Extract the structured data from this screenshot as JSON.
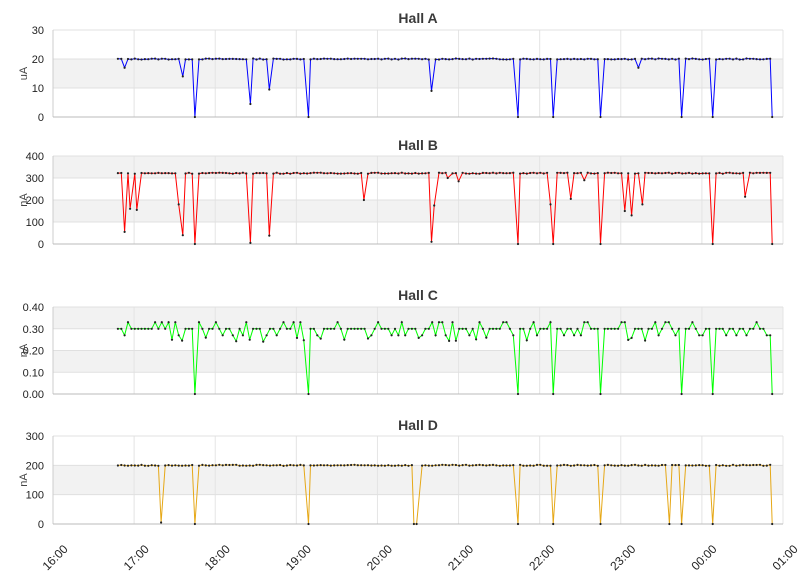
{
  "chart_data": [
    {
      "type": "line",
      "title": "Hall A",
      "ylabel": "uA",
      "ylim": [
        0,
        30
      ],
      "yticks": [
        "0",
        "10",
        "20",
        "30"
      ],
      "color": "#0000ff",
      "xlim": [
        "16:00",
        "01:00"
      ],
      "xticks": [
        "16:00",
        "17:00",
        "18:00",
        "19:00",
        "20:00",
        "21:00",
        "22:00",
        "23:00",
        "00:00",
        "01:00"
      ],
      "grid": true,
      "baseline": 20,
      "x_start": "16:48",
      "x_end": "00:54",
      "dips": [
        {
          "t": "16:53",
          "v": 17
        },
        {
          "t": "17:36",
          "v": 14
        },
        {
          "t": "17:45",
          "v": 0
        },
        {
          "t": "18:26",
          "v": 4.5
        },
        {
          "t": "18:40",
          "v": 9.5
        },
        {
          "t": "19:09",
          "v": 0
        },
        {
          "t": "20:40",
          "v": 9
        },
        {
          "t": "21:44",
          "v": 0
        },
        {
          "t": "22:10",
          "v": 0
        },
        {
          "t": "22:45",
          "v": 0
        },
        {
          "t": "23:13",
          "v": 17
        },
        {
          "t": "23:45",
          "v": 0
        },
        {
          "t": "00:08",
          "v": 0
        },
        {
          "t": "00:52",
          "v": 0
        }
      ]
    },
    {
      "type": "line",
      "title": "Hall B",
      "ylabel": "nA",
      "ylim": [
        0,
        400
      ],
      "yticks": [
        "0",
        "100",
        "200",
        "300",
        "400"
      ],
      "color": "#ff0000",
      "xlim": [
        "16:00",
        "01:00"
      ],
      "grid": true,
      "baseline": 322,
      "x_start": "16:48",
      "x_end": "00:54",
      "dips": [
        {
          "t": "16:53",
          "v": 55
        },
        {
          "t": "16:57",
          "v": 160
        },
        {
          "t": "17:02",
          "v": 155
        },
        {
          "t": "17:33",
          "v": 180
        },
        {
          "t": "17:36",
          "v": 40
        },
        {
          "t": "17:45",
          "v": 0
        },
        {
          "t": "18:26",
          "v": 5
        },
        {
          "t": "18:40",
          "v": 38
        },
        {
          "t": "19:50",
          "v": 200
        },
        {
          "t": "20:40",
          "v": 10
        },
        {
          "t": "20:42",
          "v": 175
        },
        {
          "t": "20:52",
          "v": 300
        },
        {
          "t": "21:00",
          "v": 285
        },
        {
          "t": "21:44",
          "v": 0
        },
        {
          "t": "22:08",
          "v": 180
        },
        {
          "t": "22:10",
          "v": 0
        },
        {
          "t": "22:23",
          "v": 205
        },
        {
          "t": "22:33",
          "v": 290
        },
        {
          "t": "22:45",
          "v": 0
        },
        {
          "t": "23:03",
          "v": 150
        },
        {
          "t": "23:08",
          "v": 130
        },
        {
          "t": "23:16",
          "v": 180
        },
        {
          "t": "00:08",
          "v": 0
        },
        {
          "t": "00:32",
          "v": 215
        },
        {
          "t": "00:52",
          "v": 0
        }
      ]
    },
    {
      "type": "line",
      "title": "Hall C",
      "ylabel": "nA",
      "ylim": [
        0,
        0.4
      ],
      "yticks": [
        "0.00",
        "0.10",
        "0.20",
        "0.30",
        "0.40"
      ],
      "color": "#00ff00",
      "xlim": [
        "16:00",
        "01:00"
      ],
      "grid": true,
      "baseline": 0.3,
      "noise": [
        0.27,
        0.33
      ],
      "x_start": "16:48",
      "x_end": "00:54",
      "dips": [
        {
          "t": "17:45",
          "v": 0
        },
        {
          "t": "19:09",
          "v": 0
        },
        {
          "t": "21:44",
          "v": 0
        },
        {
          "t": "22:10",
          "v": 0
        },
        {
          "t": "22:45",
          "v": 0
        },
        {
          "t": "23:45",
          "v": 0
        },
        {
          "t": "00:08",
          "v": 0
        },
        {
          "t": "00:52",
          "v": 0
        }
      ]
    },
    {
      "type": "line",
      "title": "Hall D",
      "ylabel": "nA",
      "ylim": [
        0,
        300
      ],
      "yticks": [
        "0",
        "100",
        "200",
        "300"
      ],
      "color": "#e6a817",
      "xlim": [
        "16:00",
        "01:00"
      ],
      "grid": true,
      "baseline": 200,
      "x_start": "16:48",
      "x_end": "00:54",
      "dips": [
        {
          "t": "17:20",
          "v": 5
        },
        {
          "t": "17:45",
          "v": 0
        },
        {
          "t": "19:09",
          "v": 0
        },
        {
          "t": "20:27",
          "v": 0
        },
        {
          "t": "20:29",
          "v": 0
        },
        {
          "t": "21:44",
          "v": 0
        },
        {
          "t": "22:10",
          "v": 0
        },
        {
          "t": "22:45",
          "v": 0
        },
        {
          "t": "23:36",
          "v": 0
        },
        {
          "t": "23:45",
          "v": 0
        },
        {
          "t": "00:08",
          "v": 0
        },
        {
          "t": "00:52",
          "v": 0
        }
      ]
    }
  ]
}
